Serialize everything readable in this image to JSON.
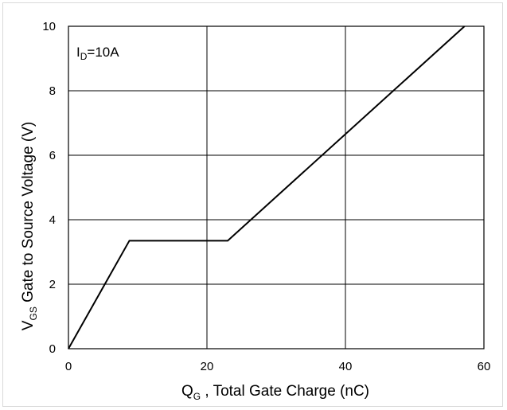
{
  "chart_data": {
    "type": "line",
    "annotation": {
      "main": "I",
      "sub": "D",
      "rest": "=10A"
    },
    "xlabel": {
      "main": "Q",
      "sub": "G",
      "rest": " , Total Gate Charge (nC)"
    },
    "ylabel": {
      "main": "V",
      "sub": "GS",
      "rest": "  Gate to Source Voltage (V)"
    },
    "xlim": [
      0,
      60
    ],
    "ylim": [
      0,
      10
    ],
    "xticks": [
      0,
      20,
      40,
      60
    ],
    "yticks": [
      0,
      2,
      4,
      6,
      8,
      10
    ],
    "grid": true,
    "series": [
      {
        "x": [
          0,
          8.8,
          23,
          57.2
        ],
        "y": [
          0,
          3.35,
          3.35,
          10
        ],
        "color": "#000000"
      }
    ]
  }
}
